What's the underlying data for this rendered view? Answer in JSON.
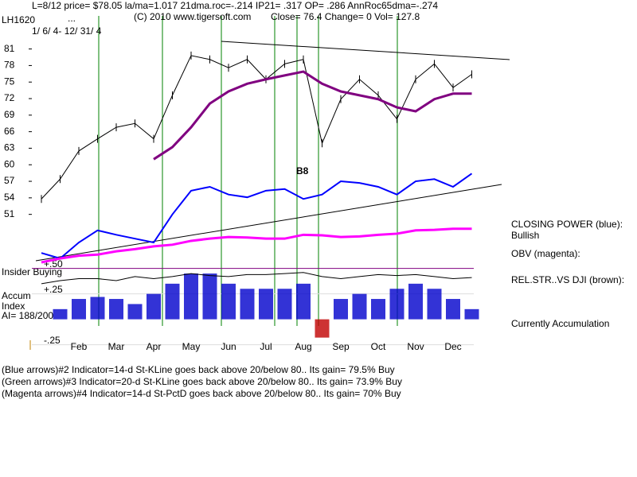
{
  "chart_data": {
    "type": "stock",
    "header": "L=8/12  price= $78.05  la/ma=1.017 21dma.roc=-.214 IP21= .317 OP= .286 AnnRoc65dma=-.274",
    "symbol": "LH1620",
    "ellipsis": "...",
    "copyright": "(C) 2010 www.tigersoft.com",
    "quote": "Close=  76.4  Change= 0 Vol= 127.8",
    "date_range": "1/ 6/ 4- 12/ 31/ 4",
    "categories": [
      null,
      null,
      "Feb",
      null,
      "Mar",
      null,
      "Apr",
      null,
      "May",
      null,
      "Jun",
      null,
      "Jul",
      null,
      "Aug",
      null,
      "Sep",
      null,
      "Oct",
      null,
      "Nov",
      null,
      "Dec",
      null
    ],
    "ylim": [
      42.3,
      87
    ],
    "yticks": [
      51,
      54,
      57,
      60,
      63,
      66,
      69,
      72,
      75,
      78,
      81
    ],
    "y2lim": [
      -0.3,
      0.56
    ],
    "y2ticks": [
      {
        "value": 0.5,
        "label": "+.50"
      },
      {
        "value": 0.25,
        "label": "+.25"
      },
      {
        "value": -0.25,
        "label": "-.25"
      }
    ],
    "series": [
      {
        "color": "#000000",
        "values": [
          53.8,
          57.4,
          62.5,
          64.7,
          66.8,
          67.5,
          64.7,
          72.6,
          79.8,
          79.1,
          77.6,
          79.1,
          75.5,
          78.3,
          79.1,
          63.9,
          71.9,
          75.5,
          72.6,
          68.3,
          75.5,
          78.3,
          74.0,
          76.4
        ]
      },
      {
        "color": "#800080",
        "values": [
          null,
          null,
          null,
          null,
          null,
          null,
          61.0,
          63.2,
          66.8,
          71.1,
          73.3,
          74.7,
          75.5,
          76.2,
          76.9,
          74.7,
          73.3,
          72.6,
          71.9,
          70.4,
          69.7,
          71.9,
          72.9,
          72.9
        ]
      },
      {
        "name": "CLOSING POWER (blue):",
        "color": "#0000ff",
        "values": [
          44.0,
          43.0,
          45.9,
          48.1,
          47.3,
          46.6,
          45.9,
          51.0,
          55.3,
          56.0,
          54.6,
          54.1,
          55.3,
          55.6,
          53.8,
          54.6,
          57.0,
          56.7,
          56.0,
          54.6,
          57.0,
          57.4,
          56.0,
          58.4
        ]
      },
      {
        "name": "OBV (magenta):",
        "color": "#ff00ff",
        "values": [
          42.3,
          43.0,
          43.5,
          43.7,
          44.3,
          44.7,
          45.2,
          45.5,
          46.2,
          46.6,
          46.9,
          46.8,
          46.6,
          46.6,
          47.3,
          47.2,
          46.9,
          47.0,
          47.3,
          47.5,
          48.1,
          48.2,
          48.4,
          48.4
        ]
      },
      {
        "name": "REL.STR..VS DJI (brown):",
        "color": "#000000",
        "axis": "y2",
        "values": [
          0.35,
          0.38,
          0.4,
          0.4,
          0.38,
          0.42,
          0.4,
          0.42,
          0.45,
          0.43,
          0.42,
          0.44,
          0.44,
          0.45,
          0.46,
          0.42,
          0.4,
          0.42,
          0.44,
          0.43,
          0.44,
          0.42,
          0.4,
          0.41
        ]
      }
    ],
    "accum": {
      "labels": [
        "Accum",
        "Index"
      ],
      "ai": "AI= 188/200",
      "color": "#0000cc",
      "values": [
        0,
        0.1,
        0.2,
        0.22,
        0.2,
        0.15,
        0.25,
        0.35,
        0.45,
        0.45,
        0.35,
        0.3,
        0.3,
        0.3,
        0.35,
        -0.18,
        0.2,
        0.25,
        0.2,
        0.3,
        0.35,
        0.3,
        0.2,
        0.1
      ]
    },
    "insider_label": "Insider Buying",
    "status": "Bullish",
    "accumulation_status": "Currently Accumulation",
    "annotation": "B8",
    "notes": [
      "(Blue arrows)#2 Indicator=14-d St-KLine goes back above 20/below 80..  Its gain= 79.5% Buy",
      "(Green arrows)#3 Indicator=20-d St-KLine goes back above 20/below 80..  Its gain= 73.9% Buy",
      "(Magenta arrows)#4 Indicator=14-d St-PctD goes back above 20/below 80..  Its gain= 70% Buy"
    ]
  }
}
